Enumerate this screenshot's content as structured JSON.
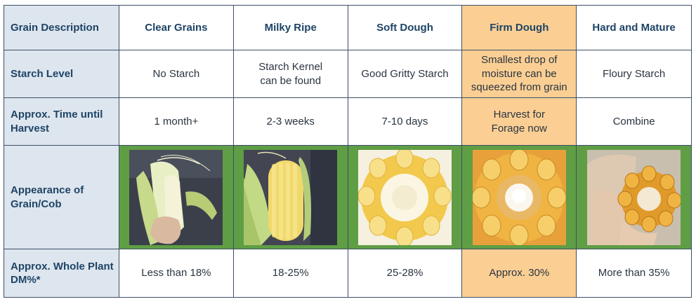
{
  "table": {
    "row_headers": {
      "grain_description": "Grain Description",
      "starch_level": "Starch Level",
      "time_until_harvest": "Approx. Time until Harvest",
      "appearance": "Appearance of Grain/Cob",
      "dm_percent": "Approx. Whole Plant DM%*"
    },
    "stages": [
      {
        "name": "Clear Grains",
        "starch": "No Starch",
        "time": "1 month+",
        "dm": "Less than 18%",
        "photo": "corn-cob-husk-photo"
      },
      {
        "name": "Milky Ripe",
        "starch": "Starch Kernel can be found",
        "time": "2-3 weeks",
        "dm": "18-25%",
        "photo": "corn-cob-milky-photo"
      },
      {
        "name": "Soft Dough",
        "starch": "Good Gritty Starch",
        "time": "7-10 days",
        "dm": "25-28%",
        "photo": "corn-cross-section-photo"
      },
      {
        "name": "Firm Dough",
        "starch": "Smallest drop of moisture can be squeezed from grain",
        "time": "Harvest for Forage now",
        "dm": "Approx. 30%",
        "photo": "corn-cross-section-photo"
      },
      {
        "name": "Hard and Mature",
        "starch": "Floury Starch",
        "time": "Combine",
        "dm": "More than 35%",
        "photo": "corn-cob-hand-photo"
      }
    ]
  },
  "colors": {
    "border": "#3d4f66",
    "row_header_bg": "#dde5ee",
    "header_text": "#1e4466",
    "highlight": "#fbcf94",
    "photo_frame": "#5f9e44"
  }
}
